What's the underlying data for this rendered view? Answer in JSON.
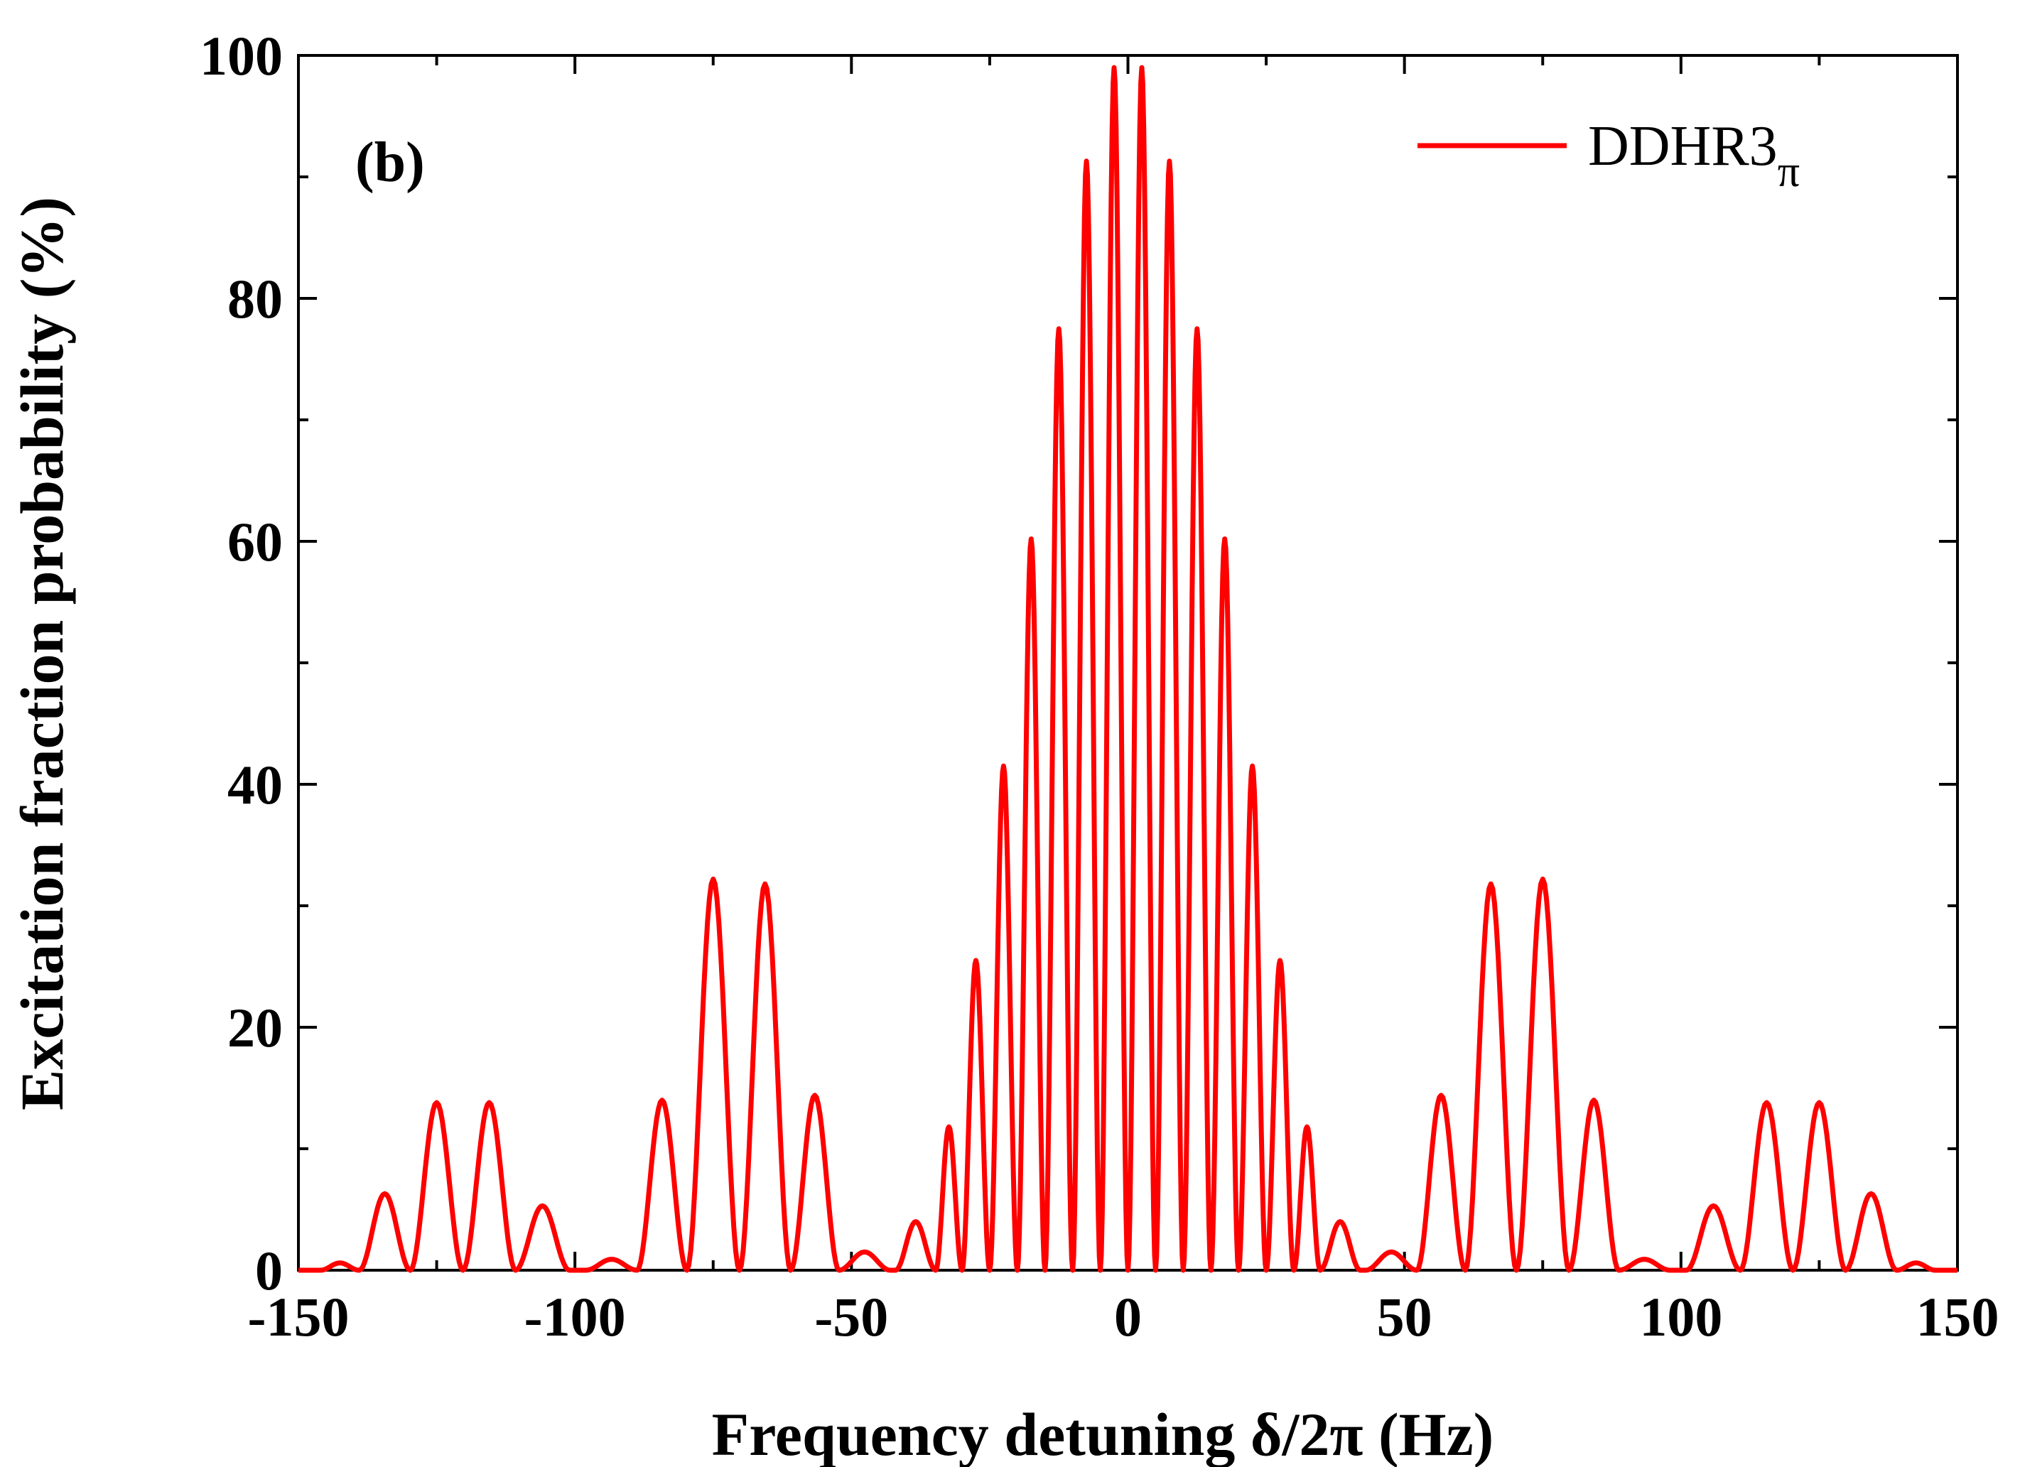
{
  "chart_data": {
    "type": "line",
    "title": "",
    "panel_label": "(b)",
    "xlabel": "Frequency detuning δ/2π (Hz)",
    "ylabel": "Excitation fraction probability (%)",
    "xlim": [
      -150,
      150
    ],
    "ylim": [
      0,
      100
    ],
    "x_ticks": [
      -150,
      -100,
      -50,
      0,
      50,
      100,
      150
    ],
    "y_ticks": [
      0,
      20,
      40,
      60,
      80,
      100
    ],
    "grid": false,
    "legend_position": "top-right",
    "series": [
      {
        "name": "DDHR3",
        "name_subscript": "π",
        "color": "#ff0000",
        "style": "solid",
        "peaks": [
          {
            "x": 2.5,
            "y": 99.0
          },
          {
            "x": 7.5,
            "y": 91.3
          },
          {
            "x": 12.5,
            "y": 77.5
          },
          {
            "x": 17.5,
            "y": 60.2
          },
          {
            "x": 22.5,
            "y": 41.5
          },
          {
            "x": 27.5,
            "y": 25.5
          },
          {
            "x": 32.5,
            "y": 11.8
          },
          {
            "x": 37.0,
            "y": 4.0
          },
          {
            "x": 48.0,
            "y": 1.5
          },
          {
            "x": 56.5,
            "y": 14.4
          },
          {
            "x": 65.5,
            "y": 31.8
          },
          {
            "x": 75.0,
            "y": 32.2
          },
          {
            "x": 84.5,
            "y": 14.0
          },
          {
            "x": 93.0,
            "y": 0.9
          },
          {
            "x": 106.0,
            "y": 5.3
          },
          {
            "x": 115.5,
            "y": 13.8
          },
          {
            "x": 125.0,
            "y": 13.8
          },
          {
            "x": 134.5,
            "y": 6.3
          },
          {
            "x": 143.5,
            "y": 0.6
          }
        ]
      }
    ]
  }
}
